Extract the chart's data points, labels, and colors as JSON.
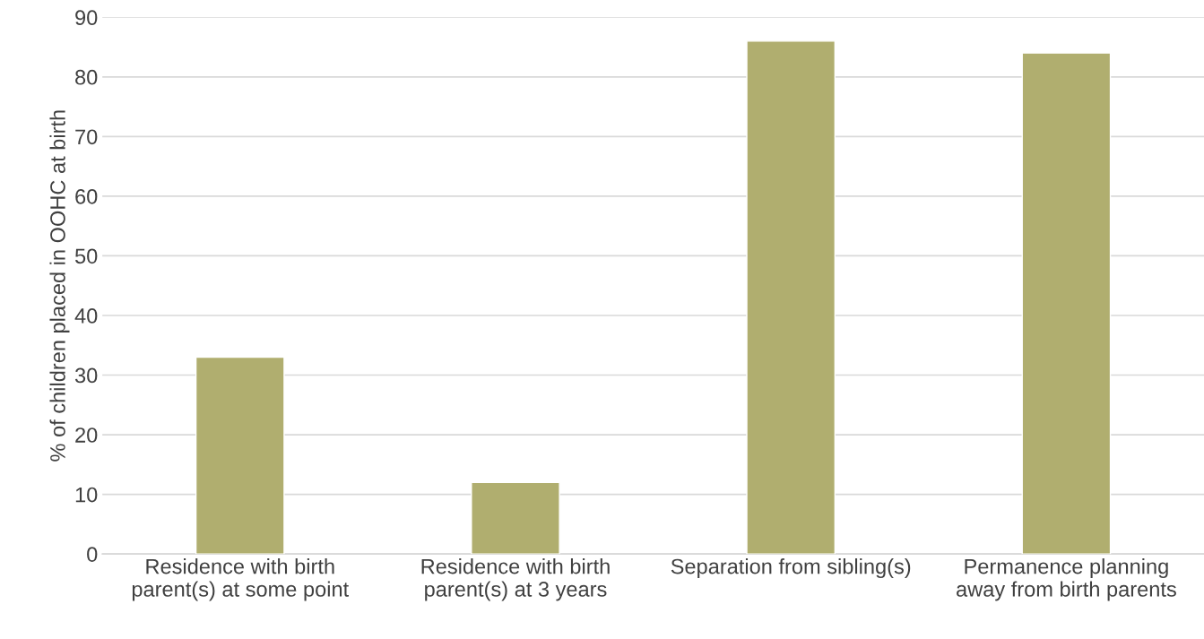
{
  "chart_data": {
    "type": "bar",
    "ylabel": "% of children placed in OOHC at birth",
    "categories": [
      "Residence with birth\nparent(s) at some point",
      "Residence with birth\nparent(s) at 3 years",
      "Separation from sibling(s)",
      "Permanence planning\naway from birth parents"
    ],
    "values": [
      33,
      12,
      86,
      84
    ],
    "color": "#b0ae6f",
    "ylim": [
      0,
      90
    ],
    "yticks": [
      0,
      10,
      20,
      30,
      40,
      50,
      60,
      70,
      80,
      90
    ],
    "grid": "y",
    "legend": false
  }
}
